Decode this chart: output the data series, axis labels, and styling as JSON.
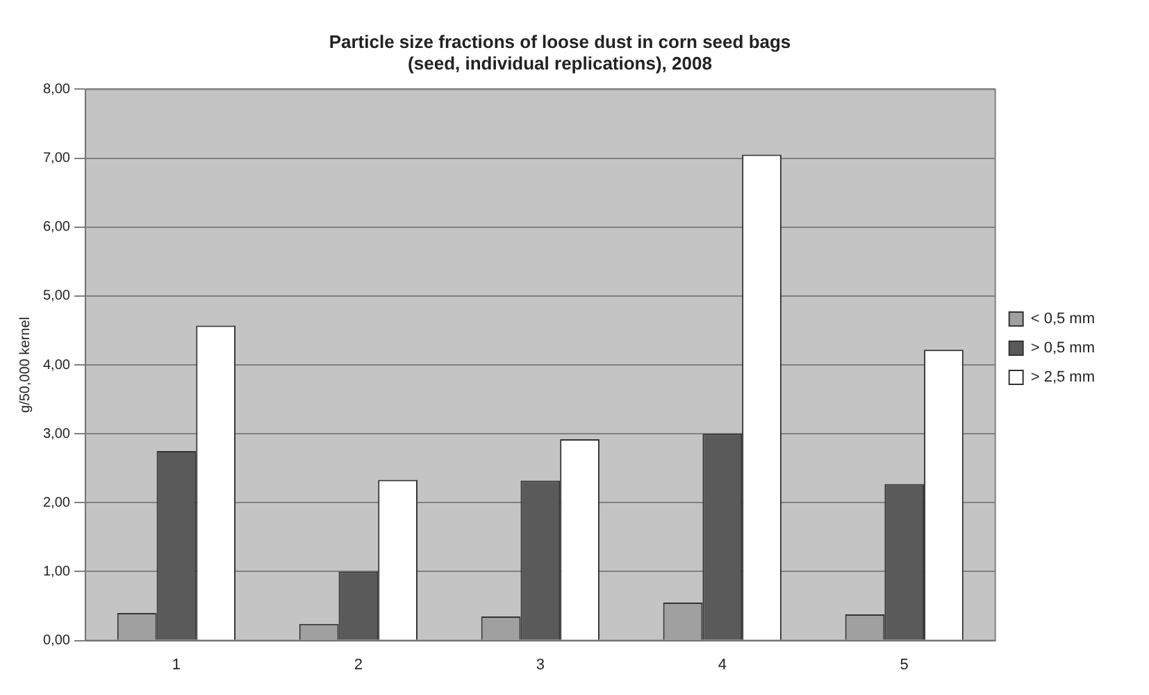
{
  "chart_data": {
    "type": "bar",
    "title": "Particle size fractions of loose dust in corn seed bags",
    "subtitle": "(seed, individual replications), 2008",
    "ylabel": "g/50,000 kernel",
    "categories": [
      "1",
      "2",
      "3",
      "4",
      "5"
    ],
    "series": [
      {
        "name": "< 0,5 mm",
        "color": "#a0a0a0",
        "values": [
          0.4,
          0.24,
          0.35,
          0.55,
          0.38
        ]
      },
      {
        "name": "> 0,5 mm",
        "color": "#5a5a5a",
        "values": [
          2.75,
          1.0,
          2.32,
          3.0,
          2.27
        ]
      },
      {
        "name": "> 2,5 mm",
        "color": "#ffffff",
        "values": [
          4.57,
          2.33,
          2.92,
          7.05,
          4.22
        ]
      }
    ],
    "ylim": [
      0,
      8
    ],
    "yticks": [
      {
        "value": 0,
        "label": "0,00"
      },
      {
        "value": 1,
        "label": "1,00"
      },
      {
        "value": 2,
        "label": "2,00"
      },
      {
        "value": 3,
        "label": "3,00"
      },
      {
        "value": 4,
        "label": "4,00"
      },
      {
        "value": 5,
        "label": "5,00"
      },
      {
        "value": 6,
        "label": "6,00"
      },
      {
        "value": 7,
        "label": "7,00"
      },
      {
        "value": 8,
        "label": "8,00"
      }
    ],
    "grid": "y",
    "legend": "right"
  }
}
